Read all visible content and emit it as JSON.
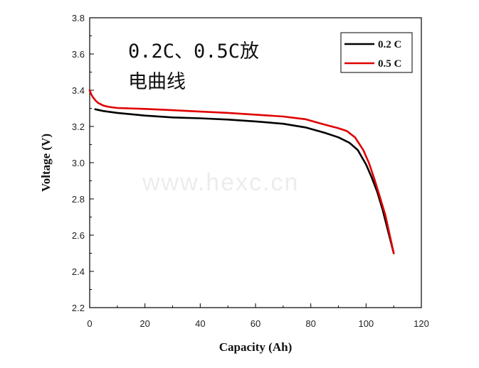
{
  "chart_data": {
    "type": "line",
    "title": "",
    "xlabel": "Capacity (Ah)",
    "ylabel": "Voltage (V)",
    "xlim": [
      0,
      120
    ],
    "ylim": [
      2.2,
      3.8
    ],
    "xticks": [
      0,
      20,
      40,
      60,
      80,
      100,
      120
    ],
    "yticks": [
      2.2,
      2.4,
      2.6,
      2.8,
      3.0,
      3.2,
      3.4,
      3.6,
      3.8
    ],
    "xtick_labels": [
      "0",
      "20",
      "40",
      "60",
      "80",
      "100",
      "120"
    ],
    "ytick_labels": [
      "2.2",
      "2.4",
      "2.6",
      "2.8",
      "3.0",
      "3.2",
      "3.4",
      "3.6",
      "3.8"
    ],
    "grid": false,
    "legend_position": "top-right",
    "annotation_lines": [
      "0.2C、0.5C放",
      "电曲线"
    ],
    "watermark": "www.hexc.cn",
    "series": [
      {
        "name": "0.2 C",
        "color": "#000000",
        "x": [
          2,
          5,
          10,
          20,
          30,
          40,
          50,
          60,
          70,
          78,
          85,
          90,
          94,
          97,
          100,
          102,
          104,
          106,
          108,
          110
        ],
        "y": [
          3.295,
          3.285,
          3.275,
          3.26,
          3.25,
          3.245,
          3.238,
          3.228,
          3.215,
          3.195,
          3.165,
          3.14,
          3.11,
          3.07,
          2.99,
          2.92,
          2.84,
          2.74,
          2.62,
          2.5
        ]
      },
      {
        "name": "0.5 C",
        "color": "#e00000",
        "x": [
          0,
          0.5,
          1,
          2,
          3,
          5,
          7,
          10,
          20,
          30,
          40,
          50,
          60,
          70,
          78,
          85,
          90,
          93,
          96,
          99,
          101,
          103,
          105,
          107,
          110
        ],
        "y": [
          3.4,
          3.38,
          3.365,
          3.345,
          3.33,
          3.315,
          3.308,
          3.302,
          3.297,
          3.29,
          3.282,
          3.275,
          3.265,
          3.255,
          3.24,
          3.21,
          3.19,
          3.175,
          3.14,
          3.07,
          3.0,
          2.91,
          2.81,
          2.71,
          2.5
        ]
      }
    ]
  }
}
